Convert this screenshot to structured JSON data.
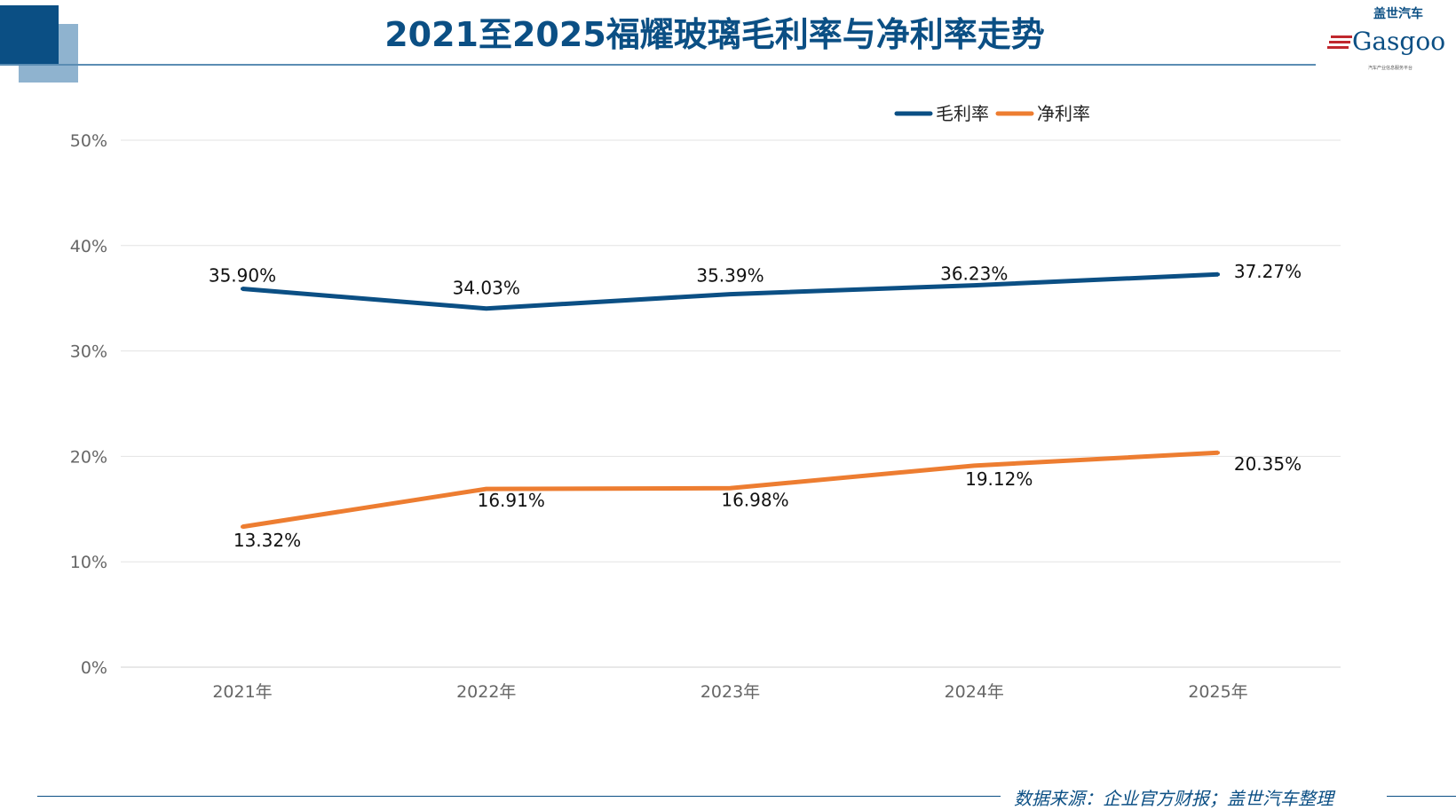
{
  "header": {
    "title": "2021至2025福耀玻璃毛利率与净利率走势"
  },
  "logo": {
    "text": "盖世汽车 Gasgoo",
    "tagline": "汽车产业信息服务平台"
  },
  "footer": {
    "source": "数据来源：企业官方财报；盖世汽车整理"
  },
  "chart_data": {
    "type": "line",
    "categories": [
      "2021年",
      "2022年",
      "2023年",
      "2024年",
      "2025年"
    ],
    "series": [
      {
        "name": "毛利率",
        "values": [
          35.9,
          34.03,
          35.39,
          36.23,
          37.27
        ],
        "labels": [
          "35.90%",
          "34.03%",
          "35.39%",
          "36.23%",
          "37.27%"
        ],
        "color": "#0b4f84"
      },
      {
        "name": "净利率",
        "values": [
          13.32,
          16.91,
          16.98,
          19.12,
          20.35
        ],
        "labels": [
          "13.32%",
          "16.91%",
          "16.98%",
          "19.12%",
          "20.35%"
        ],
        "color": "#ed7d31"
      }
    ],
    "yticks": [
      "0%",
      "10%",
      "20%",
      "30%",
      "40%",
      "50%"
    ],
    "ylim": [
      0,
      50
    ],
    "grid": true,
    "legend": "top-right",
    "title": "2021至2025福耀玻璃毛利率与净利率走势"
  }
}
